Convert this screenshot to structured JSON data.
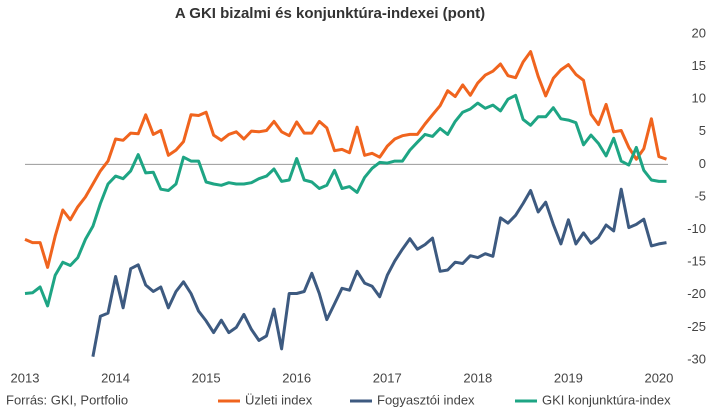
{
  "chart_data": {
    "type": "line",
    "title": "A GKI bizalmi és konjunktúra-indexei (pont)",
    "source": "Forrás: GKI, Portfolio",
    "x": [
      2013,
      2013.083,
      2013.167,
      2013.25,
      2013.333,
      2013.417,
      2013.5,
      2013.583,
      2013.667,
      2013.75,
      2013.833,
      2013.917,
      2014,
      2014.083,
      2014.167,
      2014.25,
      2014.333,
      2014.417,
      2014.5,
      2014.583,
      2014.667,
      2014.75,
      2014.833,
      2014.917,
      2015,
      2015.083,
      2015.167,
      2015.25,
      2015.333,
      2015.417,
      2015.5,
      2015.583,
      2015.667,
      2015.75,
      2015.833,
      2015.917,
      2016,
      2016.083,
      2016.167,
      2016.25,
      2016.333,
      2016.417,
      2016.5,
      2016.583,
      2016.667,
      2016.75,
      2016.833,
      2016.917,
      2017,
      2017.083,
      2017.167,
      2017.25,
      2017.333,
      2017.417,
      2017.5,
      2017.583,
      2017.667,
      2017.75,
      2017.833,
      2017.917,
      2018,
      2018.083,
      2018.167,
      2018.25,
      2018.333,
      2018.417,
      2018.5,
      2018.583,
      2018.667,
      2018.75,
      2018.833,
      2018.917,
      2019,
      2019.083,
      2019.167,
      2019.25,
      2019.333,
      2019.417,
      2019.5,
      2019.583,
      2019.667,
      2019.75,
      2019.833,
      2019.917,
      2020,
      2020.083
    ],
    "series": [
      {
        "name": "Üzleti index",
        "color": "#f0641e",
        "values": [
          -11.5,
          -12,
          -12,
          -15.8,
          -11,
          -7,
          -8.5,
          -6.5,
          -5,
          -3,
          -1,
          0.5,
          3.9,
          3.7,
          4.8,
          4.7,
          7.6,
          4.6,
          5.2,
          1.4,
          2.2,
          3.5,
          7.6,
          7.5,
          8.0,
          4.5,
          3.7,
          4.6,
          5.0,
          3.9,
          5.1,
          5.0,
          5.2,
          6.6,
          5.0,
          4.4,
          6.5,
          4.8,
          4.8,
          6.6,
          5.6,
          2.1,
          2.3,
          1.8,
          5.7,
          1.4,
          1.7,
          1.1,
          2.8,
          3.9,
          4.4,
          4.6,
          4.6,
          6.2,
          7.6,
          9.0,
          11.3,
          10.4,
          12.2,
          10.6,
          12.5,
          13.7,
          14.3,
          15.4,
          13.6,
          13.3,
          15.7,
          17.3,
          13.5,
          10.5,
          13.2,
          14.5,
          15.3,
          13.8,
          12.9,
          7.7,
          6.1,
          9.2,
          5.0,
          5.2,
          2.6,
          0.8,
          2.4,
          7.0,
          1.2,
          0.8
        ]
      },
      {
        "name": "Fogyasztói index",
        "color": "#3d5a80",
        "values": [
          null,
          null,
          null,
          null,
          null,
          null,
          null,
          null,
          null,
          -29.5,
          -23.3,
          -22.8,
          -17.2,
          -22,
          -16,
          -15.4,
          -18.5,
          -19.5,
          -18.8,
          -22,
          -19.5,
          -18,
          -19.8,
          -22.5,
          -24,
          -25.8,
          -23.9,
          -25.8,
          -25,
          -23,
          -25.3,
          -27,
          -26.3,
          -22.2,
          -28.3,
          -19.8,
          -19.8,
          -19.5,
          -16.7,
          -19.8,
          -23.8,
          -21.4,
          -19,
          -19.3,
          -16.4,
          -18.2,
          -18.7,
          -20.3,
          -17,
          -14.8,
          -13,
          -11.4,
          -13,
          -12.3,
          -11.3,
          -16.4,
          -16.2,
          -15,
          -15.2,
          -14,
          -14.3,
          -13.7,
          -14.1,
          -8.2,
          -9,
          -7.8,
          -6,
          -4,
          -7.3,
          -5.8,
          -9.2,
          -12.2,
          -8.5,
          -12.2,
          -10.5,
          -12.1,
          -11.2,
          -9.3,
          -10.2,
          -3.8,
          -9.7,
          -9.2,
          -8.4,
          -12.5,
          -12.2,
          -12.0
        ]
      },
      {
        "name": "GKI konjunktúra-index",
        "color": "#1ea584",
        "values": [
          -19.8,
          -19.7,
          -18.8,
          -21.7,
          -17,
          -15,
          -15.5,
          -14.3,
          -11.5,
          -9.5,
          -6,
          -3,
          -1.8,
          -2.2,
          -1,
          1.5,
          -1.3,
          -1.2,
          -3.8,
          -4,
          -3,
          1.1,
          0.5,
          0.5,
          -2.7,
          -3,
          -3.2,
          -2.8,
          -3,
          -3,
          -2.8,
          -2.2,
          -1.8,
          -0.7,
          -2.6,
          -2.4,
          0.9,
          -2.4,
          -2.7,
          -3.7,
          -3.2,
          -0.9,
          -3.7,
          -3.4,
          -4.3,
          -2,
          -0.6,
          0.3,
          0.2,
          0.5,
          0.5,
          2.2,
          3.4,
          4.6,
          4.3,
          5.5,
          4.6,
          6.6,
          8,
          8.5,
          9.4,
          8.6,
          9.1,
          8.2,
          10,
          10.6,
          6.9,
          6,
          7.3,
          7.3,
          8.7,
          7,
          6.8,
          6.4,
          3,
          4.5,
          3.2,
          1.3,
          4,
          0.5,
          -0.1,
          2.6,
          -0.9,
          -2.4,
          -2.6,
          -2.6
        ]
      }
    ],
    "xlim": [
      2013,
      2020.1
    ],
    "xticks": [
      2013,
      2014,
      2015,
      2016,
      2017,
      2018,
      2019,
      2020
    ],
    "ylim": [
      -30,
      20
    ],
    "yticks": [
      -30,
      -25,
      -20,
      -15,
      -10,
      -5,
      0,
      5,
      10,
      15,
      20
    ],
    "legend": "bottom"
  }
}
